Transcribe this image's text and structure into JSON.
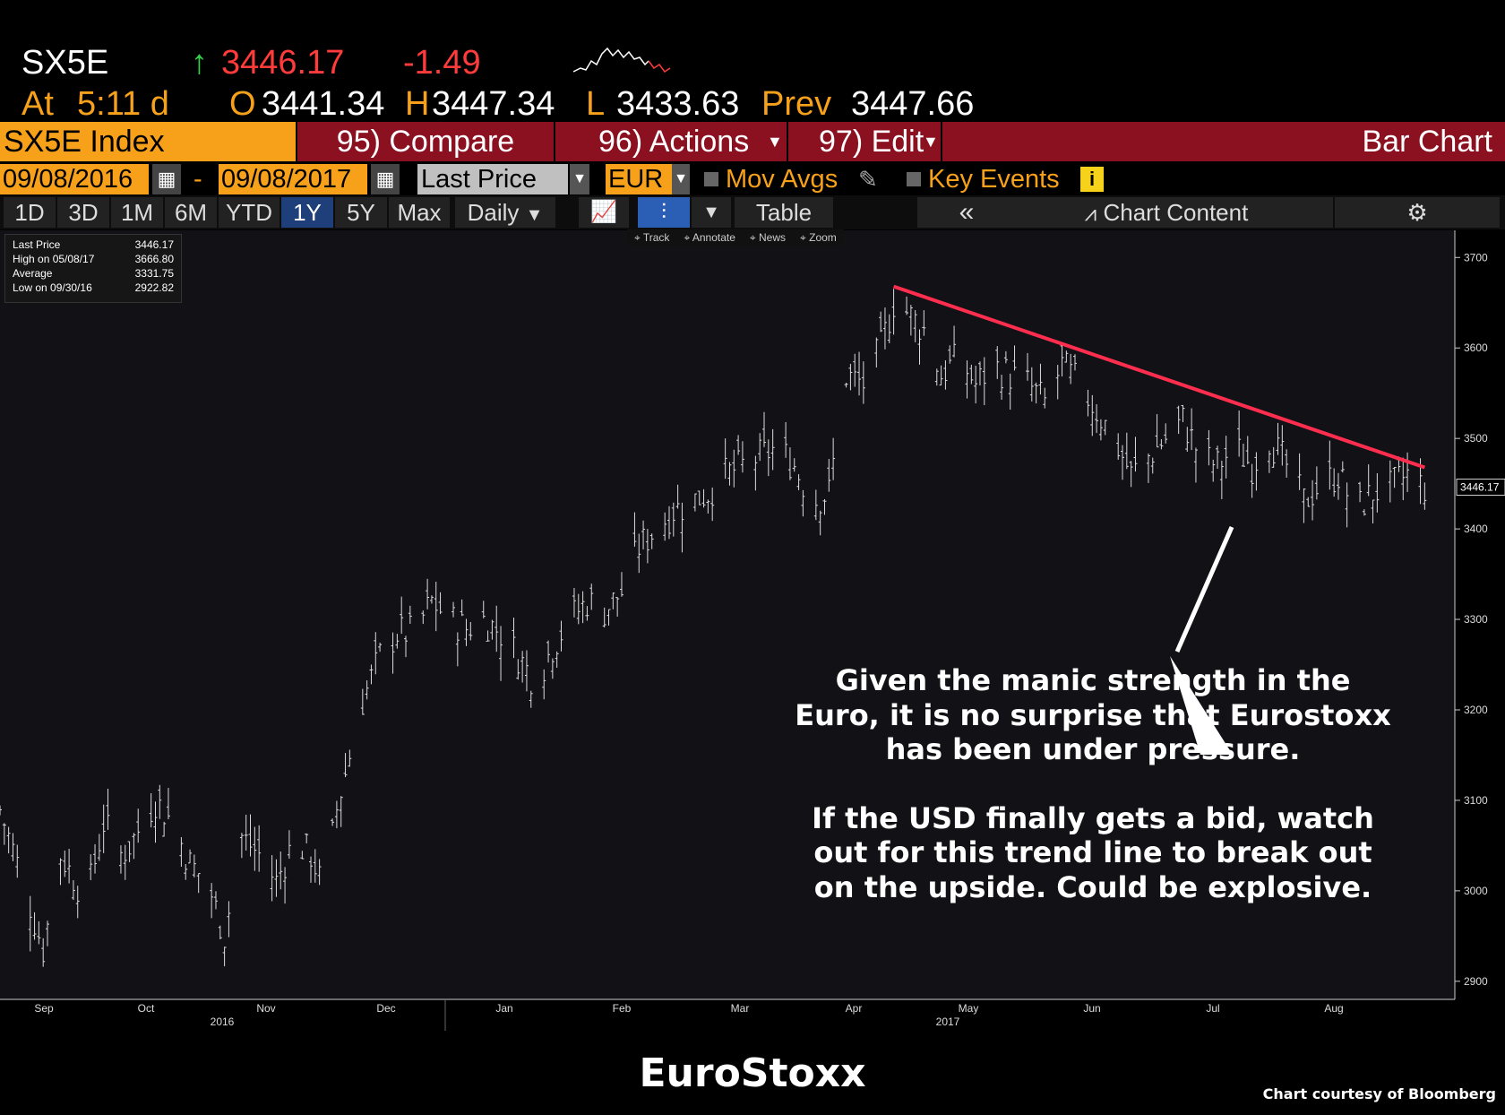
{
  "ticker": {
    "symbol": "SX5E",
    "last_arrow": "↑",
    "last_price": "3446.17",
    "change": "-1.49",
    "at_label": "At",
    "time": "5:11 d",
    "open_label": "O",
    "open": "3441.34",
    "high_label": "H",
    "high": "3447.34",
    "low_label": "L",
    "low": "3433.63",
    "prev_label": "Prev",
    "prev": "3447.66"
  },
  "toolbar": {
    "security": "SX5E Index",
    "compare": "95) Compare",
    "actions": "96) Actions",
    "edit": "97) Edit",
    "chart_type": "Bar Chart"
  },
  "controls": {
    "date_from": "09/08/2016",
    "date_sep": "-",
    "date_to": "09/08/2017",
    "field": "Last Price",
    "currency": "EUR",
    "mov_avgs": "Mov Avgs",
    "key_events": "Key Events",
    "info_icon": "i"
  },
  "periods": [
    "1D",
    "3D",
    "1M",
    "6M",
    "YTD",
    "1Y",
    "5Y",
    "Max"
  ],
  "active_period": "1Y",
  "frequency": "Daily",
  "table_label": "Table",
  "collapse_label": "«",
  "chart_content_label": "Chart Content",
  "chart_tools": [
    "Track",
    "Annotate",
    "News",
    "Zoom"
  ],
  "legend": [
    {
      "label": "Last Price",
      "value": "3446.17"
    },
    {
      "label": "High on 05/08/17",
      "value": "3666.80"
    },
    {
      "label": "Average",
      "value": "3331.75"
    },
    {
      "label": "Low on 09/30/16",
      "value": "2922.82"
    }
  ],
  "annotation": {
    "line1": "Given the manic strength in the",
    "line2": "Euro, it is no surprise that Eurostoxx",
    "line3": "has been under pressure.",
    "line5": "If the USD finally gets a bid, watch",
    "line6": "out for this trend line to break out",
    "line7": "on the upside.  Could be explosive."
  },
  "footer": {
    "title": "EuroStoxx",
    "credit": "Chart courtesy of Bloomberg"
  },
  "colors": {
    "orange": "#f7a11b",
    "red_bar": "#8b1121",
    "trend": "#ff2e4f",
    "up": "#2fd34b",
    "down": "#ff3b3b"
  },
  "chart_data": {
    "type": "bar",
    "ylim": [
      2880,
      3730
    ],
    "y_ticks": [
      2900,
      3000,
      3100,
      3200,
      3300,
      3400,
      3500,
      3600,
      3700
    ],
    "x_ticks": [
      "Sep",
      "Oct",
      "Nov",
      "Dec",
      "Jan",
      "Feb",
      "Mar",
      "Apr",
      "May",
      "Jun",
      "Jul",
      "Aug"
    ],
    "year_labels": [
      "2016",
      "2017"
    ],
    "last_value_label": "3446.17",
    "price_path": [
      [
        0,
        3090
      ],
      [
        6,
        3000
      ],
      [
        10,
        2935
      ],
      [
        14,
        3040
      ],
      [
        20,
        2990
      ],
      [
        24,
        3075
      ],
      [
        28,
        3040
      ],
      [
        30,
        3050
      ],
      [
        36,
        3100
      ],
      [
        40,
        3075
      ],
      [
        44,
        3030
      ],
      [
        48,
        3010
      ],
      [
        52,
        2950
      ],
      [
        56,
        3060
      ],
      [
        60,
        3040
      ],
      [
        64,
        3010
      ],
      [
        68,
        3055
      ],
      [
        72,
        3040
      ],
      [
        75,
        3000
      ],
      [
        78,
        3090
      ],
      [
        84,
        3210
      ],
      [
        88,
        3260
      ],
      [
        92,
        3285
      ],
      [
        96,
        3285
      ],
      [
        100,
        3320
      ],
      [
        104,
        3300
      ],
      [
        108,
        3290
      ],
      [
        112,
        3300
      ],
      [
        116,
        3285
      ],
      [
        120,
        3260
      ],
      [
        124,
        3230
      ],
      [
        128,
        3270
      ],
      [
        132,
        3300
      ],
      [
        136,
        3320
      ],
      [
        140,
        3310
      ],
      [
        144,
        3330
      ],
      [
        148,
        3380
      ],
      [
        152,
        3400
      ],
      [
        156,
        3420
      ],
      [
        160,
        3430
      ],
      [
        164,
        3440
      ],
      [
        168,
        3460
      ],
      [
        172,
        3470
      ],
      [
        176,
        3480
      ],
      [
        180,
        3490
      ],
      [
        184,
        3470
      ],
      [
        188,
        3430
      ],
      [
        192,
        3440
      ],
      [
        196,
        3570
      ],
      [
        200,
        3560
      ],
      [
        204,
        3600
      ],
      [
        207,
        3650
      ],
      [
        210,
        3640
      ],
      [
        214,
        3620
      ],
      [
        218,
        3570
      ],
      [
        222,
        3590
      ],
      [
        226,
        3560
      ],
      [
        230,
        3580
      ],
      [
        234,
        3570
      ],
      [
        238,
        3560
      ],
      [
        242,
        3540
      ],
      [
        246,
        3580
      ],
      [
        250,
        3560
      ],
      [
        254,
        3530
      ],
      [
        258,
        3500
      ],
      [
        262,
        3460
      ],
      [
        266,
        3480
      ],
      [
        270,
        3500
      ],
      [
        274,
        3520
      ],
      [
        278,
        3480
      ],
      [
        282,
        3470
      ],
      [
        286,
        3490
      ],
      [
        290,
        3470
      ],
      [
        294,
        3500
      ],
      [
        298,
        3470
      ],
      [
        302,
        3430
      ],
      [
        306,
        3450
      ],
      [
        310,
        3460
      ],
      [
        314,
        3420
      ],
      [
        318,
        3440
      ],
      [
        322,
        3445
      ],
      [
        326,
        3460
      ],
      [
        330,
        3446
      ]
    ],
    "trend_line": {
      "start": [
        207,
        3668
      ],
      "end": [
        330,
        3468
      ]
    }
  }
}
